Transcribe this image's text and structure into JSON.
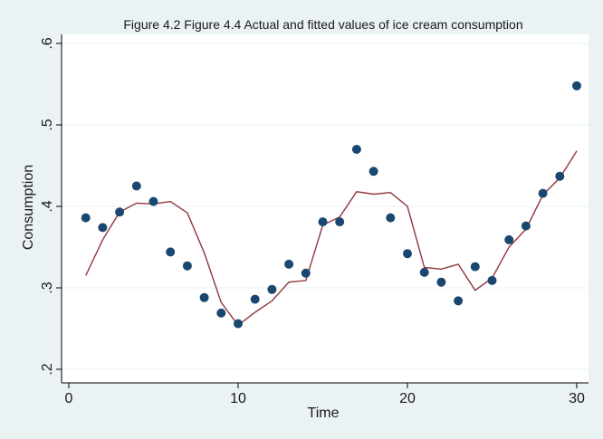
{
  "chart_data": {
    "type": "scatter",
    "title": "Figure 4.2 Figure 4.4 Actual and fitted values of ice cream consumption",
    "xlabel": "Time",
    "ylabel": "Consumption",
    "xlim": [
      0,
      30
    ],
    "ylim": [
      0.2,
      0.6
    ],
    "xticks": [
      0,
      10,
      20,
      30
    ],
    "xtick_labels": [
      "0",
      "10",
      "20",
      "30"
    ],
    "yticks": [
      0.2,
      0.3,
      0.4,
      0.5,
      0.6
    ],
    "ytick_labels": [
      ".2",
      ".3",
      ".4",
      ".5",
      ".6"
    ],
    "grid": true,
    "legend": "none",
    "x": [
      1,
      2,
      3,
      4,
      5,
      6,
      7,
      8,
      9,
      10,
      11,
      12,
      13,
      14,
      15,
      16,
      17,
      18,
      19,
      20,
      21,
      22,
      23,
      24,
      25,
      26,
      27,
      28,
      29,
      30
    ],
    "series": [
      {
        "type": "scatter",
        "color": "#1a476f",
        "values": [
          0.386,
          0.374,
          0.393,
          0.425,
          0.406,
          0.344,
          0.327,
          0.288,
          0.269,
          0.256,
          0.286,
          0.298,
          0.329,
          0.318,
          0.381,
          0.381,
          0.47,
          0.443,
          0.386,
          0.342,
          0.319,
          0.307,
          0.284,
          0.326,
          0.309,
          0.359,
          0.376,
          0.416,
          0.437,
          0.548
        ]
      },
      {
        "type": "line",
        "color": "#90353b",
        "values": [
          0.315,
          0.359,
          0.393,
          0.404,
          0.403,
          0.406,
          0.392,
          0.343,
          0.282,
          0.254,
          0.27,
          0.284,
          0.307,
          0.309,
          0.377,
          0.387,
          0.418,
          0.415,
          0.417,
          0.4,
          0.325,
          0.323,
          0.329,
          0.297,
          0.312,
          0.35,
          0.372,
          0.414,
          0.435,
          0.468
        ]
      }
    ]
  },
  "style": {
    "background": "#eaf2f3",
    "plot_background": "#ffffff",
    "grid_color": "#eaf2f3",
    "axis_color": "#000000"
  }
}
